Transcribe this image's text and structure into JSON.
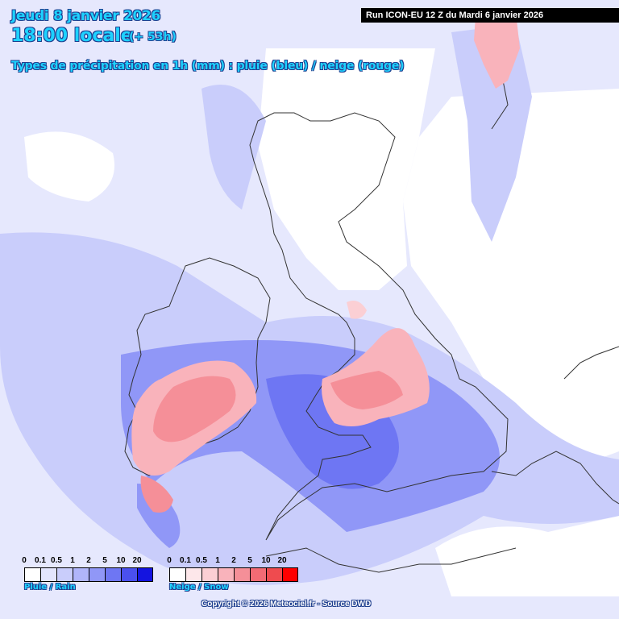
{
  "header": {
    "date": "Jeudi 8 janvier 2026",
    "time": "18:00 locale",
    "lead": "(+ 53h)",
    "type_label": "Types de précipitation en 1h (mm) : pluie (bleu) / neige (rouge)"
  },
  "run_info": "Run ICON-EU 12 Z du Mardi 6 janvier 2026",
  "legends": {
    "rain": {
      "label": "Pluie / Rain",
      "thresholds": [
        "0",
        "0.1",
        "0.5",
        "1",
        "2",
        "5",
        "10",
        "20"
      ],
      "colors": [
        "#ffffff",
        "#e3e5fd",
        "#c9cdfb",
        "#b0b5fa",
        "#9097f7",
        "#6e76f3",
        "#4a50ee",
        "#1414e0"
      ]
    },
    "snow": {
      "label": "Neige / Snow",
      "thresholds": [
        "0",
        "0.1",
        "0.5",
        "1",
        "2",
        "5",
        "10",
        "20"
      ],
      "colors": [
        "#ffffff",
        "#fde7ea",
        "#fbcfd4",
        "#f9b3bb",
        "#f58f98",
        "#f26b74",
        "#ef4b4f",
        "#ff0000"
      ]
    }
  },
  "copyright": "Copyright © 2026 Meteociel.fr - Source DWD",
  "colors": {
    "title_text": "#1ed2ff",
    "title_outline": "#1f3f8f"
  }
}
